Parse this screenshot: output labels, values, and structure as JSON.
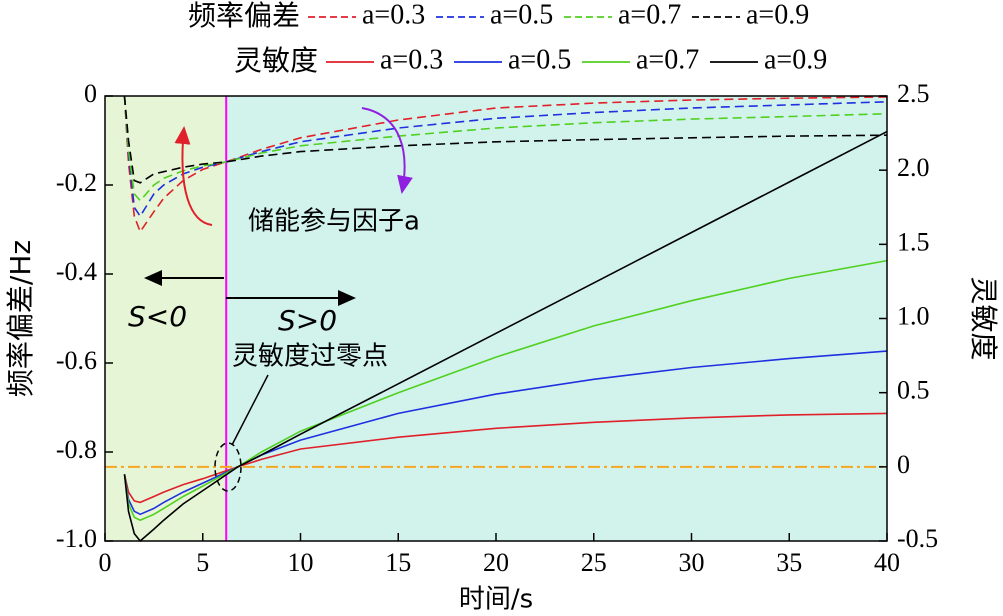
{
  "chart_data": {
    "type": "line",
    "xlabel": "时间/s",
    "ylabel": "频率偏差/Hz",
    "y2label": "灵敏度",
    "xlim": [
      0,
      40
    ],
    "xticks": [
      0,
      5,
      10,
      15,
      20,
      25,
      30,
      35,
      40
    ],
    "ylim": [
      -1,
      0
    ],
    "yticks": [
      {
        "value": -1,
        "label": "-1.0"
      },
      -0.8,
      -0.6,
      -0.4,
      -0.2,
      0
    ],
    "y2lim": [
      -0.5,
      2.5
    ],
    "y2ticks": [
      -0.5,
      0,
      0.5,
      {
        "value": 1,
        "label": "1.0"
      },
      1.5,
      {
        "value": 2,
        "label": "2.0"
      },
      2.5
    ],
    "legend_titles": [
      "频率偏差",
      "灵敏度"
    ],
    "vline": {
      "x": 6.2,
      "color": "#ff00ff"
    },
    "hline": {
      "y2": 0,
      "color": "#f5a623"
    },
    "annotations": [
      "S<0",
      "S>0",
      "储能参与因子a",
      "灵敏度过零点"
    ],
    "series": [
      {
        "name": "a=0.3",
        "color": "#e0202a",
        "style": "dashed",
        "axis": "y",
        "x": [
          1,
          1.2,
          1.5,
          1.8,
          2.5,
          3,
          4,
          5,
          6.2,
          8,
          10,
          15,
          20,
          25,
          30,
          35,
          40
        ],
        "values": [
          0,
          -0.15,
          -0.27,
          -0.305,
          -0.26,
          -0.23,
          -0.19,
          -0.165,
          -0.148,
          -0.12,
          -0.094,
          -0.054,
          -0.027,
          -0.016,
          -0.009,
          -0.005,
          -0.002
        ]
      },
      {
        "name": "a=0.5",
        "color": "#2030e0",
        "style": "dashed",
        "axis": "y",
        "x": [
          1,
          1.2,
          1.5,
          1.8,
          2.5,
          3,
          4,
          5,
          6.2,
          8,
          10,
          15,
          20,
          25,
          30,
          35,
          40
        ],
        "values": [
          0,
          -0.13,
          -0.25,
          -0.27,
          -0.22,
          -0.2,
          -0.175,
          -0.16,
          -0.148,
          -0.125,
          -0.103,
          -0.072,
          -0.05,
          -0.037,
          -0.027,
          -0.02,
          -0.013
        ]
      },
      {
        "name": "a=0.7",
        "color": "#50d020",
        "style": "dashed",
        "axis": "y",
        "x": [
          1,
          1.2,
          1.5,
          1.8,
          2.5,
          3,
          4,
          5,
          6.2,
          8,
          10,
          15,
          20,
          25,
          30,
          35,
          40
        ],
        "values": [
          0,
          -0.12,
          -0.22,
          -0.235,
          -0.2,
          -0.185,
          -0.168,
          -0.157,
          -0.148,
          -0.128,
          -0.112,
          -0.09,
          -0.072,
          -0.06,
          -0.052,
          -0.046,
          -0.04
        ]
      },
      {
        "name": "a=0.9",
        "color": "#000000",
        "style": "dashed",
        "axis": "y",
        "x": [
          1,
          1.2,
          1.5,
          1.8,
          2.5,
          3,
          4,
          5,
          6.2,
          8,
          10,
          15,
          20,
          25,
          30,
          35,
          40
        ],
        "values": [
          0,
          -0.1,
          -0.19,
          -0.195,
          -0.175,
          -0.17,
          -0.16,
          -0.153,
          -0.148,
          -0.135,
          -0.125,
          -0.112,
          -0.103,
          -0.098,
          -0.094,
          -0.09,
          -0.088
        ]
      },
      {
        "name": "a=0.3",
        "color": "#e0202a",
        "style": "solid",
        "axis": "y2",
        "x": [
          1,
          1.2,
          1.5,
          1.8,
          2.5,
          3,
          4,
          5,
          6.8,
          8,
          10,
          15,
          20,
          25,
          30,
          35,
          40
        ],
        "values": [
          -0.05,
          -0.17,
          -0.23,
          -0.24,
          -0.2,
          -0.17,
          -0.12,
          -0.08,
          0,
          0.05,
          0.12,
          0.2,
          0.26,
          0.3,
          0.33,
          0.35,
          0.36
        ]
      },
      {
        "name": "a=0.5",
        "color": "#2030e0",
        "style": "solid",
        "axis": "y2",
        "x": [
          1,
          1.2,
          1.5,
          1.8,
          2.5,
          3,
          4,
          5,
          6.8,
          8,
          10,
          15,
          20,
          25,
          30,
          35,
          40
        ],
        "values": [
          -0.05,
          -0.22,
          -0.3,
          -0.32,
          -0.28,
          -0.24,
          -0.17,
          -0.11,
          0,
          0.08,
          0.18,
          0.36,
          0.49,
          0.59,
          0.67,
          0.73,
          0.78
        ]
      },
      {
        "name": "a=0.7",
        "color": "#50d020",
        "style": "solid",
        "axis": "y2",
        "x": [
          1,
          1.2,
          1.5,
          1.8,
          2.5,
          3,
          4,
          5,
          6.8,
          8,
          10,
          15,
          20,
          25,
          30,
          35,
          40
        ],
        "values": [
          -0.05,
          -0.25,
          -0.34,
          -0.36,
          -0.32,
          -0.28,
          -0.2,
          -0.13,
          0,
          0.1,
          0.24,
          0.5,
          0.74,
          0.95,
          1.12,
          1.27,
          1.39
        ]
      },
      {
        "name": "a=0.9",
        "color": "#000000",
        "style": "solid",
        "axis": "y2",
        "x": [
          1,
          1.2,
          1.5,
          1.8,
          2.5,
          3,
          4,
          5,
          6.8,
          8,
          10,
          15,
          20,
          25,
          30,
          35,
          40
        ],
        "values": [
          -0.05,
          -0.3,
          -0.45,
          -0.5,
          -0.42,
          -0.36,
          -0.25,
          -0.16,
          0,
          0.08,
          0.22,
          0.56,
          0.9,
          1.24,
          1.58,
          1.92,
          2.26
        ]
      }
    ]
  }
}
